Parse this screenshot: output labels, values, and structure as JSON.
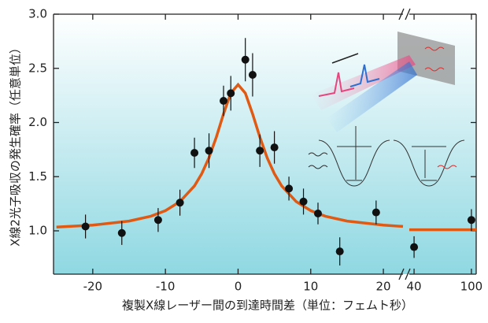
{
  "chart_data": {
    "type": "scatter",
    "x_label": "複製X線レーザー間の到達時間差（単位：フェムト秒）",
    "y_label": "X線2光子吸収の発生確率（任意単位）",
    "xlim": [
      -25.4,
      22.7
    ],
    "xticks": [
      -20,
      -10,
      0,
      10,
      20
    ],
    "x2lim": [
      35,
      105
    ],
    "x2ticks": [
      40,
      100
    ],
    "ylim": [
      0.6,
      3.0
    ],
    "yticks": [
      {
        "value": 1.0,
        "label": "1.0"
      },
      {
        "value": 1.5,
        "label": "1.5"
      },
      {
        "value": 2.0,
        "label": "2.0"
      },
      {
        "value": 2.5,
        "label": "2.5"
      },
      {
        "value": 3.0,
        "label": "3.0"
      }
    ],
    "series": [
      {
        "type": "scatter",
        "color": "#111111",
        "x": [
          -21,
          -16,
          -11,
          -8,
          -6,
          -4,
          -2,
          -1,
          1,
          2,
          3,
          5,
          7,
          9,
          11,
          14,
          19,
          40,
          100
        ],
        "values": [
          1.04,
          0.98,
          1.1,
          1.26,
          1.72,
          1.74,
          2.2,
          2.27,
          2.58,
          2.44,
          1.74,
          1.77,
          1.39,
          1.27,
          1.16,
          0.81,
          1.17,
          0.85,
          1.1
        ],
        "errors": [
          0.11,
          0.11,
          0.11,
          0.12,
          0.14,
          0.16,
          0.14,
          0.16,
          0.2,
          0.2,
          0.15,
          0.15,
          0.11,
          0.12,
          0.1,
          0.13,
          0.11,
          0.1,
          0.1
        ]
      },
      {
        "type": "line",
        "color": "#e05a14",
        "x": [
          -25,
          -20,
          -15,
          -12,
          -10,
          -8,
          -6,
          -5,
          -4,
          -3,
          -2,
          -1,
          0,
          1,
          2,
          3,
          4,
          5,
          6,
          8,
          10,
          12,
          15,
          20,
          22.7
        ],
        "values": [
          1.034,
          1.052,
          1.09,
          1.135,
          1.186,
          1.27,
          1.415,
          1.527,
          1.675,
          1.864,
          2.08,
          2.271,
          2.35,
          2.271,
          2.08,
          1.864,
          1.675,
          1.527,
          1.415,
          1.27,
          1.186,
          1.135,
          1.09,
          1.052,
          1.041
        ]
      },
      {
        "type": "line",
        "color": "#e05a14",
        "x": [
          35,
          105
        ],
        "values": [
          1.01,
          1.01
        ]
      }
    ]
  }
}
